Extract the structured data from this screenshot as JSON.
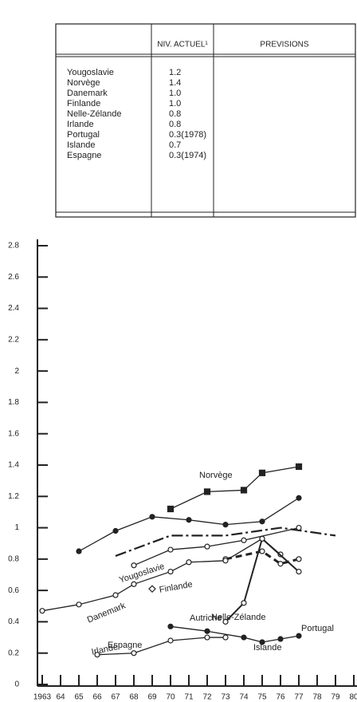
{
  "table": {
    "headers": [
      "NIV. ACTUEL¹",
      "PREVISIONS"
    ],
    "rows": [
      [
        "Yougoslavie",
        "1.2"
      ],
      [
        "Norvège",
        "1.4"
      ],
      [
        "Danemark",
        "1.0"
      ],
      [
        "Finlande",
        "1.0"
      ],
      [
        "Nelle-Zélande",
        "0.8"
      ],
      [
        "Irlande",
        "0.8"
      ],
      [
        "Portugal",
        "0.3(1978)"
      ],
      [
        "Islande",
        "0.7"
      ],
      [
        "Espagne",
        "0.3(1974)"
      ]
    ]
  },
  "chart_data": {
    "type": "line",
    "xlim": [
      1963,
      1980
    ],
    "xticks": [
      1963,
      {
        "value": 1964,
        "label": "64"
      },
      {
        "value": 1965,
        "label": "65"
      },
      {
        "value": 1966,
        "label": "66"
      },
      {
        "value": 1967,
        "label": "67"
      },
      {
        "value": 1968,
        "label": "68"
      },
      {
        "value": 1969,
        "label": "69"
      },
      {
        "value": 1970,
        "label": "70"
      },
      {
        "value": 1971,
        "label": "71"
      },
      {
        "value": 1972,
        "label": "72"
      },
      {
        "value": 1973,
        "label": "73"
      },
      {
        "value": 1974,
        "label": "74"
      },
      {
        "value": 1975,
        "label": "75"
      },
      {
        "value": 1976,
        "label": "76"
      },
      {
        "value": 1977,
        "label": "77"
      },
      {
        "value": 1978,
        "label": "78"
      },
      {
        "value": 1979,
        "label": "79"
      },
      {
        "value": 1980,
        "label": "80"
      }
    ],
    "ylim": [
      0,
      2.8
    ],
    "yticks": [
      0,
      0.2,
      0.4,
      0.6,
      0.8,
      1.0,
      1.2,
      1.4,
      1.6,
      1.8,
      2.0,
      2.2,
      2.4,
      2.6,
      2.8
    ],
    "series": [
      {
        "name": "Norvège",
        "color": "#222",
        "x": [
          1970,
          1972,
          1974,
          1975,
          1977
        ],
        "values": [
          1.12,
          1.23,
          1.24,
          1.35,
          1.39
        ]
      },
      {
        "name": "Yougoslavie",
        "color": "#222",
        "x": [
          1965,
          1967,
          1969,
          1971,
          1973,
          1975,
          1977
        ],
        "values": [
          0.85,
          0.98,
          1.07,
          1.05,
          1.02,
          1.04,
          1.19
        ]
      },
      {
        "name": "Danemark",
        "color": "#222",
        "x": [
          1967,
          1970,
          1973,
          1976,
          1979
        ],
        "values": [
          0.82,
          0.95,
          0.95,
          1.0,
          0.95
        ]
      },
      {
        "name": "Finlande",
        "color": "#222",
        "x": [
          1968,
          1970,
          1972,
          1974,
          1977
        ],
        "values": [
          0.76,
          0.86,
          0.88,
          0.92,
          1.0
        ]
      },
      {
        "name": "Nelle-Zélande",
        "color": "#222",
        "x": [
          1973,
          1975,
          1976,
          1977
        ],
        "values": [
          0.8,
          0.85,
          0.77,
          0.8
        ]
      },
      {
        "name": "Irlande",
        "color": "#222",
        "x": [
          1963,
          1965,
          1967,
          1968,
          1970,
          1971,
          1973,
          1975,
          1976
        ],
        "values": [
          0.47,
          0.51,
          0.57,
          0.64,
          0.72,
          0.78,
          0.79,
          0.93,
          0.83
        ]
      },
      {
        "name": "Islande",
        "color": "#222",
        "x": [
          1973,
          1974,
          1975,
          1977
        ],
        "values": [
          0.4,
          0.52,
          0.93,
          0.72
        ]
      },
      {
        "name": "Portugal",
        "color": "#222",
        "x": [
          1970,
          1972,
          1974,
          1975,
          1976,
          1977
        ],
        "values": [
          0.37,
          0.34,
          0.3,
          0.27,
          0.29,
          0.31
        ]
      },
      {
        "name": "Espagne",
        "color": "#222",
        "x": [
          1966,
          1968,
          1970,
          1972,
          1973
        ],
        "values": [
          0.19,
          0.2,
          0.28,
          0.3,
          0.3
        ]
      },
      {
        "name": "Autriche",
        "color": "#222",
        "x": [
          1969
        ],
        "values": [
          0.61
        ]
      }
    ]
  }
}
